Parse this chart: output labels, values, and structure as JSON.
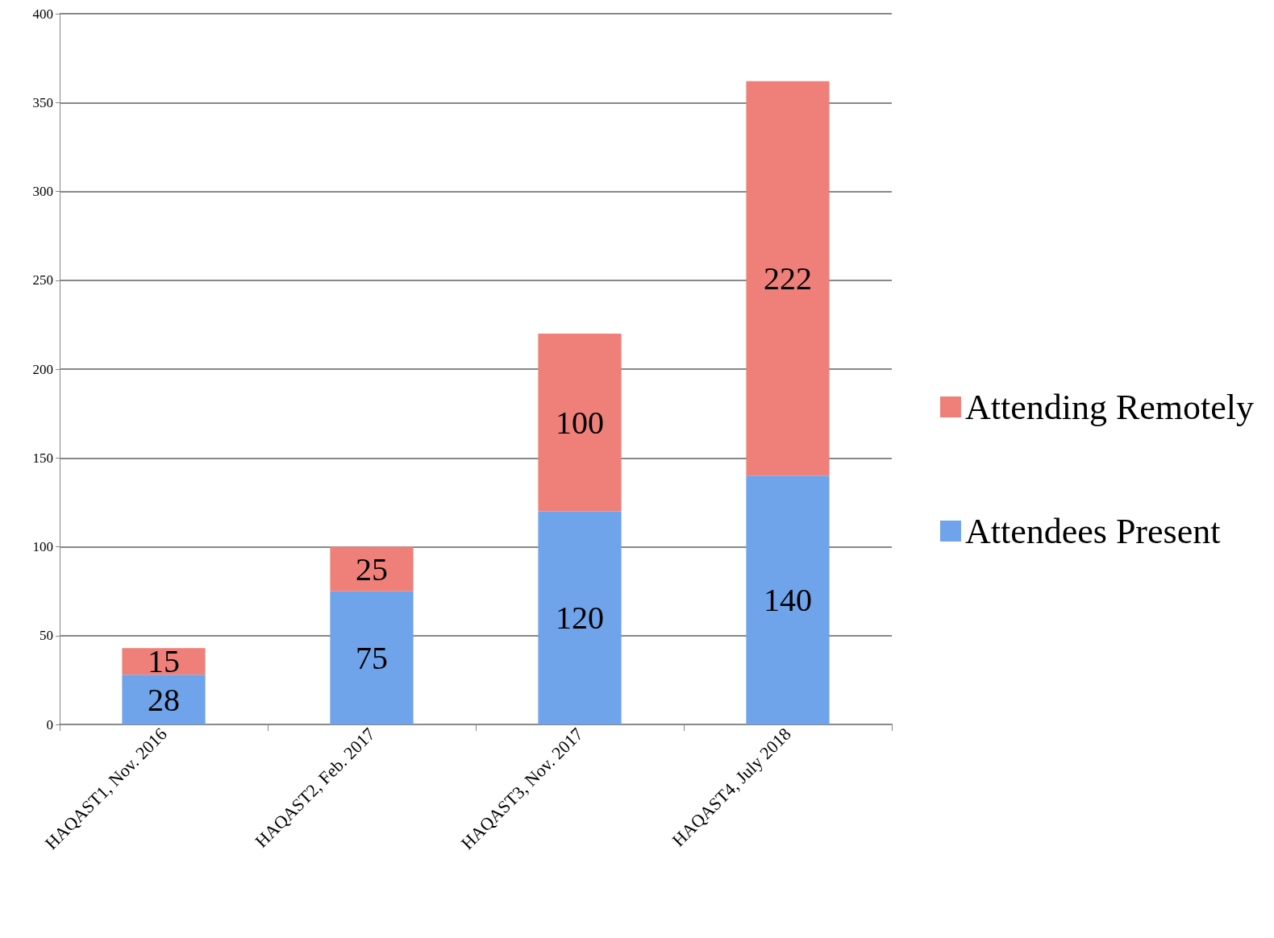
{
  "chart_data": {
    "type": "bar",
    "stacked": true,
    "categories": [
      "HAQAST1, Nov. 2016",
      "HAQAST2, Feb. 2017",
      "HAQAST3, Nov. 2017",
      "HAQAST4, July 2018"
    ],
    "series": [
      {
        "name": "Attendees Present",
        "color": "#6fa3ea",
        "values": [
          28,
          75,
          120,
          140
        ]
      },
      {
        "name": "Attending Remotely",
        "color": "#ee8079",
        "values": [
          15,
          25,
          100,
          222
        ]
      }
    ],
    "ylim": [
      0,
      400
    ],
    "yticks": [
      0,
      50,
      100,
      150,
      200,
      250,
      300,
      350,
      400
    ],
    "grid": "y",
    "legend": "right",
    "data_labels": true
  }
}
